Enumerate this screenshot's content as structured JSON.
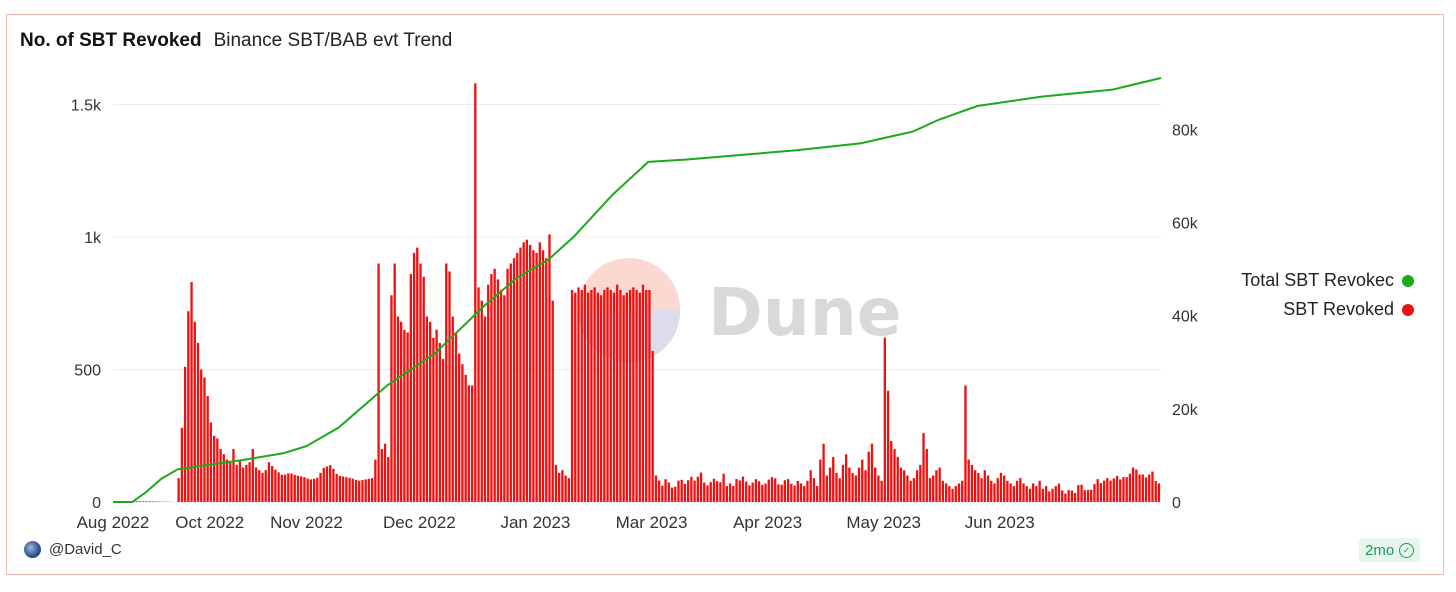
{
  "header": {
    "title": "No. of SBT Revoked",
    "subtitle": "Binance SBT/BAB evt Trend"
  },
  "legend": [
    {
      "label": "Total SBT Revokec",
      "color": "#1aaa1a"
    },
    {
      "label": "SBT Revoked",
      "color": "#ee1111"
    }
  ],
  "watermark": "Dune",
  "footer": {
    "user": "@David_C",
    "age": "2mo"
  },
  "chart_data": {
    "type": "bar",
    "x_ticks": [
      "Aug 2022",
      "Oct 2022",
      "Nov 2022",
      "Dec 2022",
      "Jan 2023",
      "Mar 2023",
      "Apr 2023",
      "May 2023",
      "Jun 2023"
    ],
    "y_left": {
      "ticks": [
        "0",
        "500",
        "1k",
        "1.5k"
      ],
      "ylim": [
        0,
        1600
      ]
    },
    "y_right": {
      "ticks": [
        "0",
        "20k",
        "40k",
        "60k",
        "80k"
      ],
      "ylim": [
        0,
        91000
      ]
    },
    "grid": true,
    "legend_position": "right",
    "series": [
      {
        "name": "SBT Revoked",
        "type": "bar",
        "axis": "left",
        "color": "#ee1111",
        "segments": [
          [
            0,
            20,
            0,
            3,
            2,
            0
          ],
          [
            20,
            48,
            90,
            280,
            510,
            720,
            830,
            680,
            600,
            500,
            470,
            400,
            300,
            250,
            240,
            200,
            180,
            160,
            150,
            200,
            140,
            160,
            130,
            140,
            150,
            200,
            130,
            120,
            110,
            120
          ],
          [
            48,
            81,
            150,
            120,
            100,
            110,
            100,
            95,
            85,
            90,
            130,
            140,
            100,
            95,
            90,
            80,
            85,
            90
          ],
          [
            81,
            86,
            160,
            900,
            200,
            220,
            170
          ],
          [
            86,
            104,
            780,
            900,
            700,
            680,
            650,
            640,
            860,
            940,
            960,
            900,
            850,
            700,
            680,
            620,
            650,
            600,
            540,
            900
          ],
          [
            104,
            112,
            870,
            700,
            640,
            560,
            520,
            480,
            440,
            440
          ],
          [
            112,
            122,
            1580,
            810,
            760,
            700,
            820,
            860,
            880,
            840,
            800,
            780
          ],
          [
            122,
            135,
            880,
            900,
            920,
            940,
            960,
            980,
            990,
            970,
            950,
            940,
            980,
            950,
            920
          ],
          [
            135,
            142,
            1010,
            760,
            140,
            110,
            120,
            100,
            90
          ],
          [
            142,
            168,
            800,
            790,
            810,
            800,
            820,
            790,
            800,
            810,
            790,
            780,
            800,
            810,
            800,
            790,
            820,
            800,
            780,
            790,
            800,
            810,
            800,
            790,
            820,
            800,
            800,
            570
          ],
          [
            168,
            214,
            100,
            80,
            60,
            90,
            70,
            50,
            60,
            90,
            80,
            60,
            100,
            90,
            70,
            130,
            80,
            60,
            70,
            90,
            80,
            70,
            110,
            60,
            70,
            60,
            90,
            80,
            100,
            70,
            60,
            80,
            90,
            70,
            60,
            80,
            90,
            100,
            70,
            60,
            80,
            90,
            70,
            60,
            80,
            70
          ],
          [
            214,
            239,
            60,
            80,
            120,
            90,
            60,
            160,
            220,
            100,
            130,
            170,
            110,
            90,
            140,
            180,
            130,
            110,
            100,
            130,
            160,
            120,
            190,
            220,
            130,
            100,
            80
          ],
          [
            239,
            252,
            620,
            420,
            230,
            200,
            170,
            130,
            120,
            100,
            80,
            90,
            120,
            140,
            260
          ],
          [
            252,
            268,
            200,
            90,
            100,
            120,
            130,
            80,
            70,
            60,
            50,
            60,
            70,
            80,
            440,
            160,
            140,
            120
          ],
          [
            268,
            292,
            110,
            90,
            120,
            100,
            80,
            70,
            90,
            110,
            100,
            80,
            70,
            60,
            80,
            90,
            70,
            60,
            50,
            70,
            60,
            80,
            50,
            60,
            40,
            50
          ],
          [
            292,
            325,
            60,
            70,
            40,
            30,
            50,
            40,
            30,
            90,
            40,
            50,
            40,
            60,
            90,
            70,
            80,
            90,
            80,
            90,
            100,
            80,
            100,
            90,
            120,
            140,
            100,
            110,
            90,
            100,
            120,
            80,
            70
          ]
        ]
      },
      {
        "name": "Total SBT Revokec",
        "type": "line",
        "axis": "right",
        "color": "#1aaa1a",
        "points": [
          [
            0,
            0
          ],
          [
            6,
            0
          ],
          [
            10,
            2000
          ],
          [
            15,
            5000
          ],
          [
            20,
            7000
          ],
          [
            30,
            8000
          ],
          [
            40,
            9000
          ],
          [
            53,
            10500
          ],
          [
            60,
            12000
          ],
          [
            70,
            16000
          ],
          [
            85,
            25000
          ],
          [
            100,
            32000
          ],
          [
            115,
            42000
          ],
          [
            125,
            48000
          ],
          [
            135,
            52000
          ],
          [
            143,
            57000
          ],
          [
            155,
            66000
          ],
          [
            166,
            73000
          ],
          [
            178,
            73500
          ],
          [
            195,
            74500
          ],
          [
            212,
            75500
          ],
          [
            232,
            77000
          ],
          [
            248,
            79500
          ],
          [
            256,
            82000
          ],
          [
            262,
            83500
          ],
          [
            268,
            85000
          ],
          [
            288,
            87000
          ],
          [
            310,
            88500
          ],
          [
            325,
            91000
          ]
        ]
      }
    ]
  }
}
